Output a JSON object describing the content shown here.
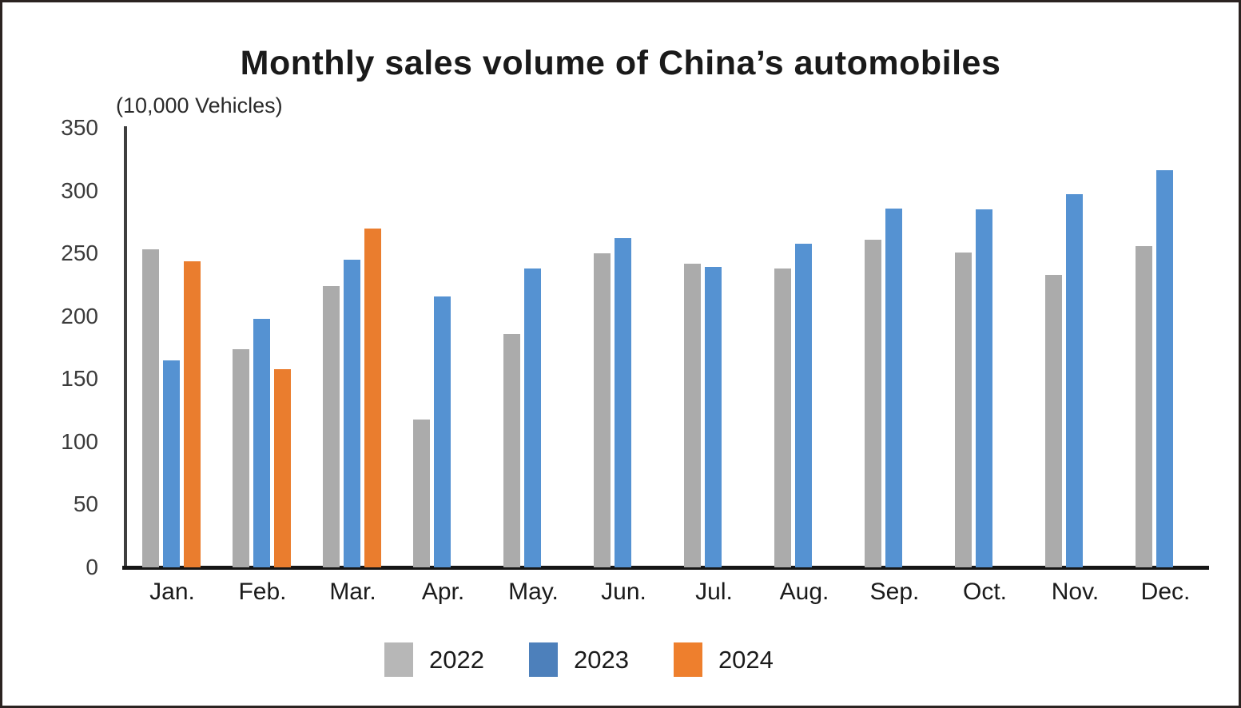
{
  "title": "Monthly sales volume of China’s automobiles",
  "unit_label": "(10,000 Vehicles)",
  "chart_data": {
    "type": "bar",
    "title": "Monthly sales volume of China’s automobiles",
    "xlabel": "",
    "ylabel": "(10,000 Vehicles)",
    "categories": [
      "Jan.",
      "Feb.",
      "Mar.",
      "Apr.",
      "May.",
      "Jun.",
      "Jul.",
      "Aug.",
      "Sep.",
      "Oct.",
      "Nov.",
      "Dec."
    ],
    "series": [
      {
        "name": "2022",
        "color": "#ababab",
        "legend_color": "#b7b7b7",
        "values": [
          253,
          174,
          224,
          118,
          186,
          250,
          242,
          238,
          261,
          251,
          233,
          256
        ]
      },
      {
        "name": "2023",
        "color": "#5592d2",
        "legend_color": "#4d80bb",
        "values": [
          165,
          198,
          245,
          216,
          238,
          262,
          239,
          258,
          286,
          285,
          297,
          316
        ]
      },
      {
        "name": "2024",
        "color": "#ea7d2e",
        "legend_color": "#ee7f2d",
        "values": [
          244,
          158,
          270,
          null,
          null,
          null,
          null,
          null,
          null,
          null,
          null,
          null
        ]
      }
    ],
    "ylim": [
      0,
      350
    ],
    "yticks": [
      0,
      50,
      100,
      150,
      200,
      250,
      300,
      350
    ],
    "grid": false,
    "legend_position": "bottom",
    "axis_color": "#3f3f3f",
    "baseline_color": "#161616"
  }
}
